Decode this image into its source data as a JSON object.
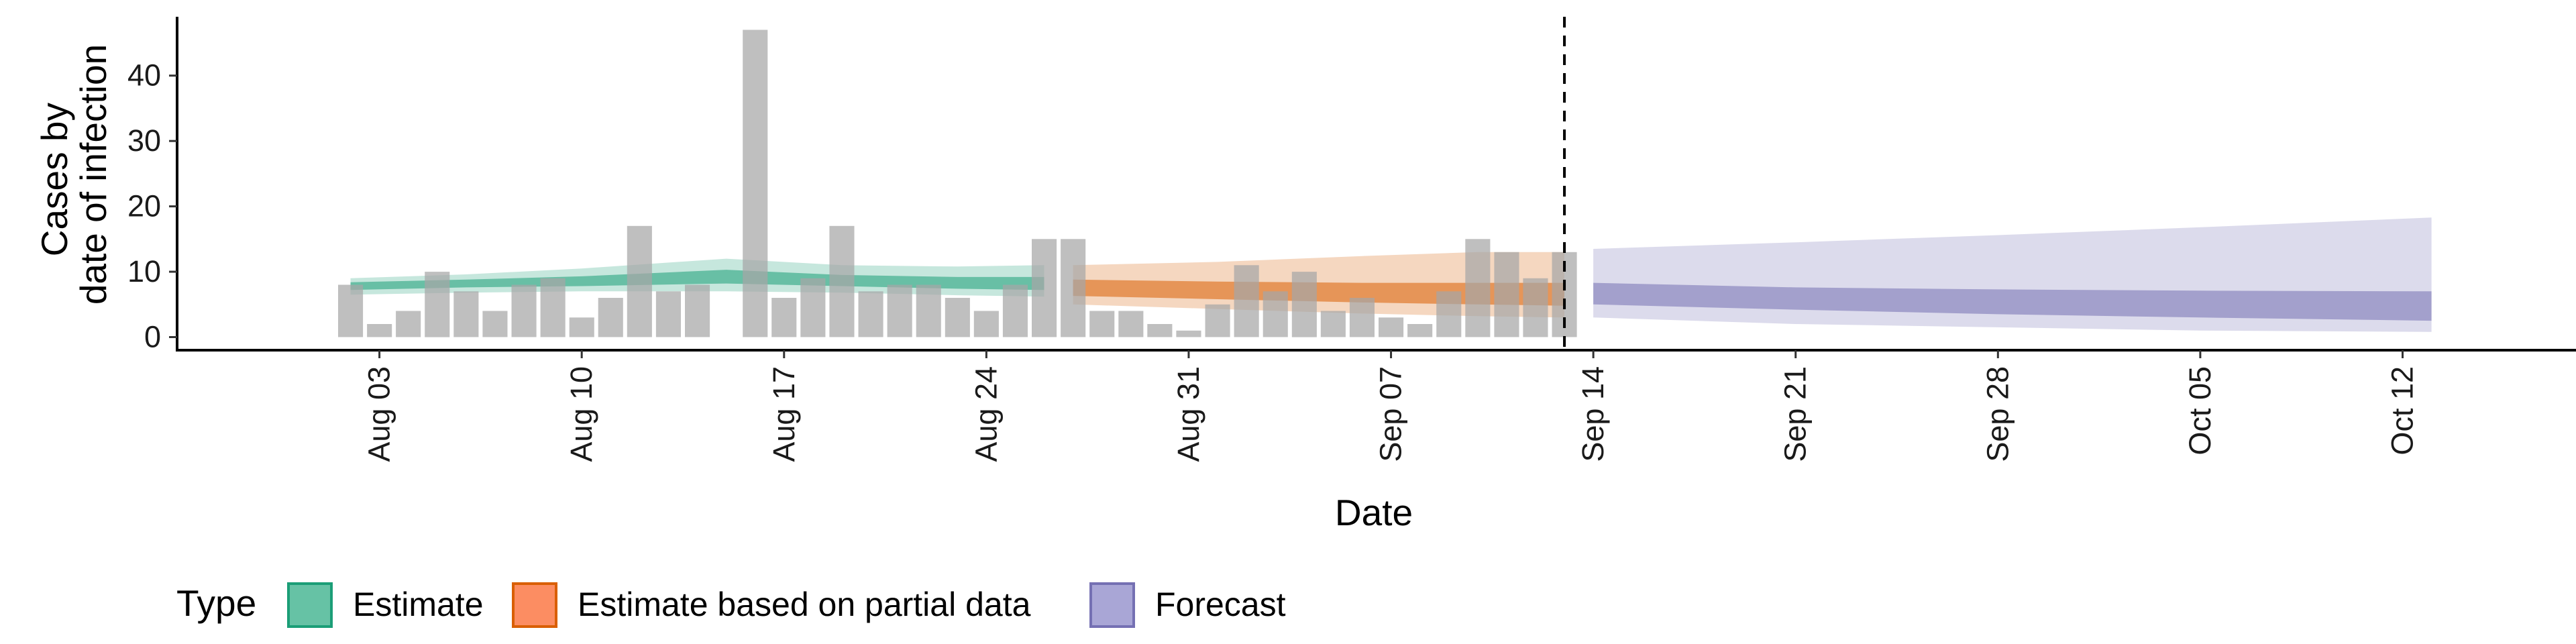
{
  "chart_data": {
    "type": "bar",
    "xlabel": "Date",
    "ylabel_lines": [
      "Cases by",
      "date of infection"
    ],
    "ylim": [
      -2,
      49
    ],
    "y_ticks": [
      0,
      10,
      20,
      30,
      40
    ],
    "x_range": [
      "2020-07-27",
      "2020-10-18"
    ],
    "x_ticks": [
      {
        "date": "2020-08-03",
        "label": "Aug 03"
      },
      {
        "date": "2020-08-10",
        "label": "Aug 10"
      },
      {
        "date": "2020-08-17",
        "label": "Aug 17"
      },
      {
        "date": "2020-08-24",
        "label": "Aug 24"
      },
      {
        "date": "2020-08-31",
        "label": "Aug 31"
      },
      {
        "date": "2020-09-07",
        "label": "Sep 07"
      },
      {
        "date": "2020-09-14",
        "label": "Sep 14"
      },
      {
        "date": "2020-09-21",
        "label": "Sep 21"
      },
      {
        "date": "2020-09-28",
        "label": "Sep 28"
      },
      {
        "date": "2020-10-05",
        "label": "Oct 05"
      },
      {
        "date": "2020-10-12",
        "label": "Oct 12"
      }
    ],
    "observed_cases": {
      "start_date": "2020-08-02",
      "values": [
        8,
        2,
        4,
        10,
        7,
        4,
        8,
        9,
        3,
        6,
        17,
        7,
        8,
        0,
        47,
        6,
        9,
        17,
        7,
        8,
        8,
        6,
        4,
        8,
        15,
        15,
        4,
        4,
        2,
        1,
        5,
        11,
        7,
        10,
        4,
        6,
        3,
        2,
        7,
        15,
        13,
        9,
        13
      ]
    },
    "forecast_start_line": "2020-09-13",
    "legend": {
      "title": "Type",
      "position": "bottom",
      "items": [
        {
          "label": "Estimate",
          "fill": "#66c2a5",
          "stroke": "#1b9e77"
        },
        {
          "label": "Estimate based on partial data",
          "fill": "#fc8d62",
          "stroke": "#d95f02"
        },
        {
          "label": "Forecast",
          "fill": "#a9a6d6",
          "stroke": "#7570b3"
        }
      ]
    },
    "bands": [
      {
        "type": "Estimate",
        "color": "#1b9e77",
        "points": [
          {
            "date": "2020-08-02",
            "lo90": 6.5,
            "hi90": 9.0,
            "lo50": 7.2,
            "hi50": 8.4
          },
          {
            "date": "2020-08-06",
            "lo90": 6.8,
            "hi90": 9.6,
            "lo50": 7.6,
            "hi50": 8.8
          },
          {
            "date": "2020-08-10",
            "lo90": 7.0,
            "hi90": 10.5,
            "lo50": 7.8,
            "hi50": 9.3
          },
          {
            "date": "2020-08-15",
            "lo90": 7.0,
            "hi90": 12.0,
            "lo50": 8.2,
            "hi50": 10.3
          },
          {
            "date": "2020-08-19",
            "lo90": 6.8,
            "hi90": 11.0,
            "lo50": 7.8,
            "hi50": 9.5
          },
          {
            "date": "2020-08-23",
            "lo90": 6.4,
            "hi90": 10.8,
            "lo50": 7.4,
            "hi50": 9.2
          },
          {
            "date": "2020-08-26",
            "lo90": 6.2,
            "hi90": 11.0,
            "lo50": 7.2,
            "hi50": 9.2
          }
        ]
      },
      {
        "type": "Estimate based on partial data",
        "color": "#d95f02",
        "points": [
          {
            "date": "2020-08-27",
            "lo90": 5.0,
            "hi90": 11.0,
            "lo50": 6.3,
            "hi50": 8.8
          },
          {
            "date": "2020-09-01",
            "lo90": 4.3,
            "hi90": 11.5,
            "lo50": 5.8,
            "hi50": 8.5
          },
          {
            "date": "2020-09-06",
            "lo90": 3.6,
            "hi90": 12.4,
            "lo50": 5.3,
            "hi50": 8.3
          },
          {
            "date": "2020-09-10",
            "lo90": 3.2,
            "hi90": 13.0,
            "lo50": 5.0,
            "hi50": 8.3
          },
          {
            "date": "2020-09-13",
            "lo90": 3.0,
            "hi90": 13.0,
            "lo50": 4.8,
            "hi50": 8.3
          }
        ]
      },
      {
        "type": "Forecast",
        "color": "#7570b3",
        "points": [
          {
            "date": "2020-09-14",
            "lo90": 3.0,
            "hi90": 13.5,
            "lo50": 5.0,
            "hi50": 8.3
          },
          {
            "date": "2020-09-21",
            "lo90": 2.0,
            "hi90": 14.5,
            "lo50": 4.2,
            "hi50": 7.6
          },
          {
            "date": "2020-09-28",
            "lo90": 1.5,
            "hi90": 15.6,
            "lo50": 3.5,
            "hi50": 7.3
          },
          {
            "date": "2020-10-05",
            "lo90": 1.0,
            "hi90": 16.8,
            "lo50": 3.0,
            "hi50": 7.1
          },
          {
            "date": "2020-10-13",
            "lo90": 0.8,
            "hi90": 18.3,
            "lo50": 2.5,
            "hi50": 7.0
          }
        ]
      }
    ]
  }
}
